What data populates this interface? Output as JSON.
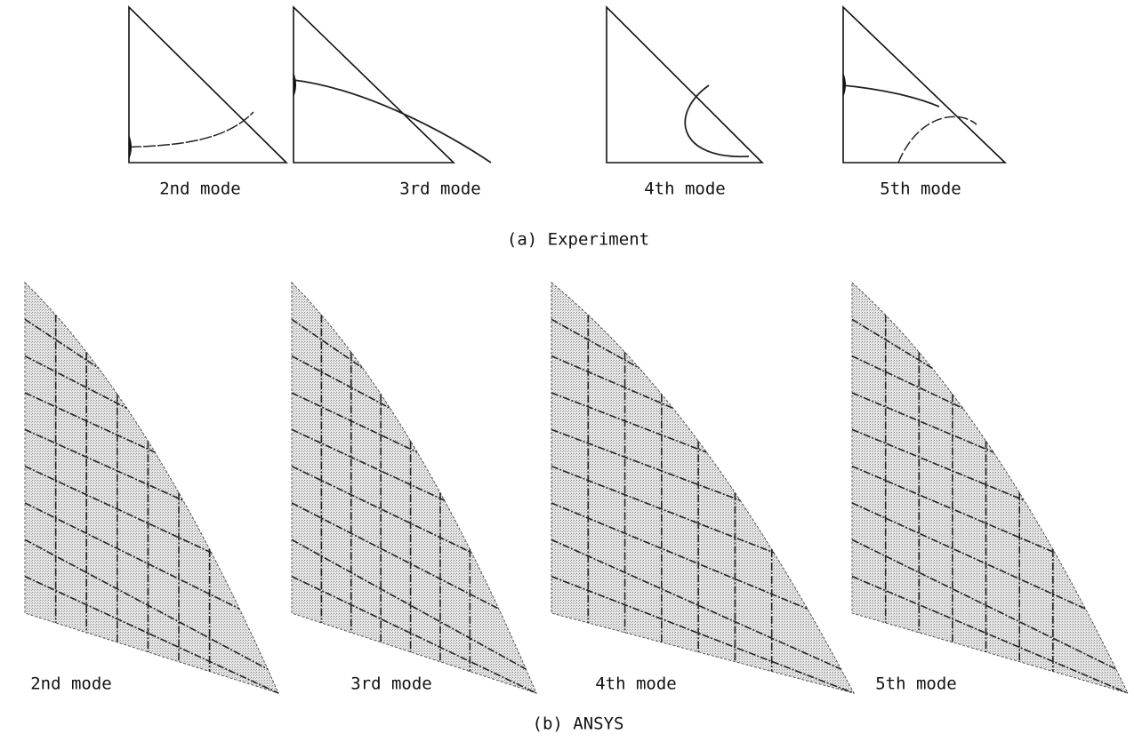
{
  "experiment": {
    "panels": [
      {
        "label": "2nd mode"
      },
      {
        "label": "3rd mode"
      },
      {
        "label": "4th mode"
      },
      {
        "label": "5th mode"
      }
    ],
    "caption": "(a) Experiment"
  },
  "ansys": {
    "panels": [
      {
        "label": "2nd mode"
      },
      {
        "label": "3rd mode"
      },
      {
        "label": "4th mode"
      },
      {
        "label": "5th mode"
      }
    ],
    "caption": "(b) ANSYS"
  }
}
